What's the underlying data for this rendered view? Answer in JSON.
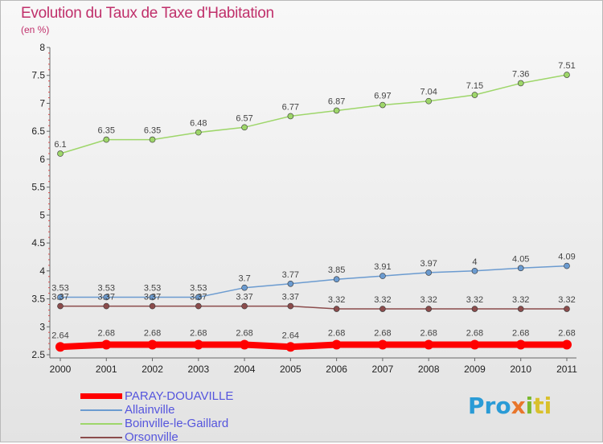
{
  "chart_data": {
    "type": "line",
    "title": "Evolution du Taux de Taxe d'Habitation",
    "subtitle": "(en %)",
    "x": [
      "2000",
      "2001",
      "2002",
      "2003",
      "2004",
      "2005",
      "2006",
      "2007",
      "2008",
      "2009",
      "2010",
      "2011"
    ],
    "ylim": [
      2.5,
      8
    ],
    "yticks": [
      "2.5",
      "3",
      "3.5",
      "4",
      "4.5",
      "5",
      "5.5",
      "6",
      "6.5",
      "7",
      "7.5",
      "8"
    ],
    "grid": false,
    "legend_position": "bottom-left",
    "series": [
      {
        "name": "PARAY-DOUAVILLE",
        "color": "#ff0000",
        "values": [
          2.64,
          2.68,
          2.68,
          2.68,
          2.68,
          2.64,
          2.68,
          2.68,
          2.68,
          2.68,
          2.68,
          2.68
        ],
        "labels": [
          "2.64",
          "2.68",
          "2.68",
          "2.68",
          "2.68",
          "2.64",
          "2.68",
          "2.68",
          "2.68",
          "2.68",
          "2.68",
          "2.68"
        ]
      },
      {
        "name": "Allainville",
        "color": "#6b9bd0",
        "values": [
          3.53,
          3.53,
          3.53,
          3.53,
          3.7,
          3.77,
          3.85,
          3.91,
          3.97,
          4,
          4.05,
          4.09
        ],
        "labels": [
          "3.53",
          "3.53",
          "3.53",
          "3.53",
          "3.7",
          "3.77",
          "3.85",
          "3.91",
          "3.97",
          "4",
          "4.05",
          "4.09"
        ]
      },
      {
        "name": "Boinville-le-Gaillard",
        "color": "#9ed66a",
        "values": [
          6.1,
          6.35,
          6.35,
          6.48,
          6.57,
          6.77,
          6.87,
          6.97,
          7.04,
          7.15,
          7.36,
          7.51
        ],
        "labels": [
          "6.1",
          "6.35",
          "6.35",
          "6.48",
          "6.57",
          "6.77",
          "6.87",
          "6.97",
          "7.04",
          "7.15",
          "7.36",
          "7.51"
        ]
      },
      {
        "name": "Orsonville",
        "color": "#8b4c4c",
        "values": [
          3.37,
          3.37,
          3.37,
          3.37,
          3.37,
          3.37,
          3.32,
          3.32,
          3.32,
          3.32,
          3.32,
          3.32
        ],
        "labels": [
          "3.37",
          "3.37",
          "3.37",
          "3.37",
          "3.37",
          "3.37",
          "3.32",
          "3.32",
          "3.32",
          "3.32",
          "3.32",
          "3.32"
        ]
      }
    ]
  },
  "legend": {
    "items": [
      {
        "label": "PARAY-DOUAVILLE",
        "color": "#ff0000"
      },
      {
        "label": "Allainville",
        "color": "#6b9bd0"
      },
      {
        "label": "Boinville-le-Gaillard",
        "color": "#9ed66a"
      },
      {
        "label": "Orsonville",
        "color": "#8b4c4c"
      }
    ]
  },
  "logo": {
    "p1": "Pro",
    "p2": "x",
    "p3": "i",
    "p4": "ti"
  }
}
